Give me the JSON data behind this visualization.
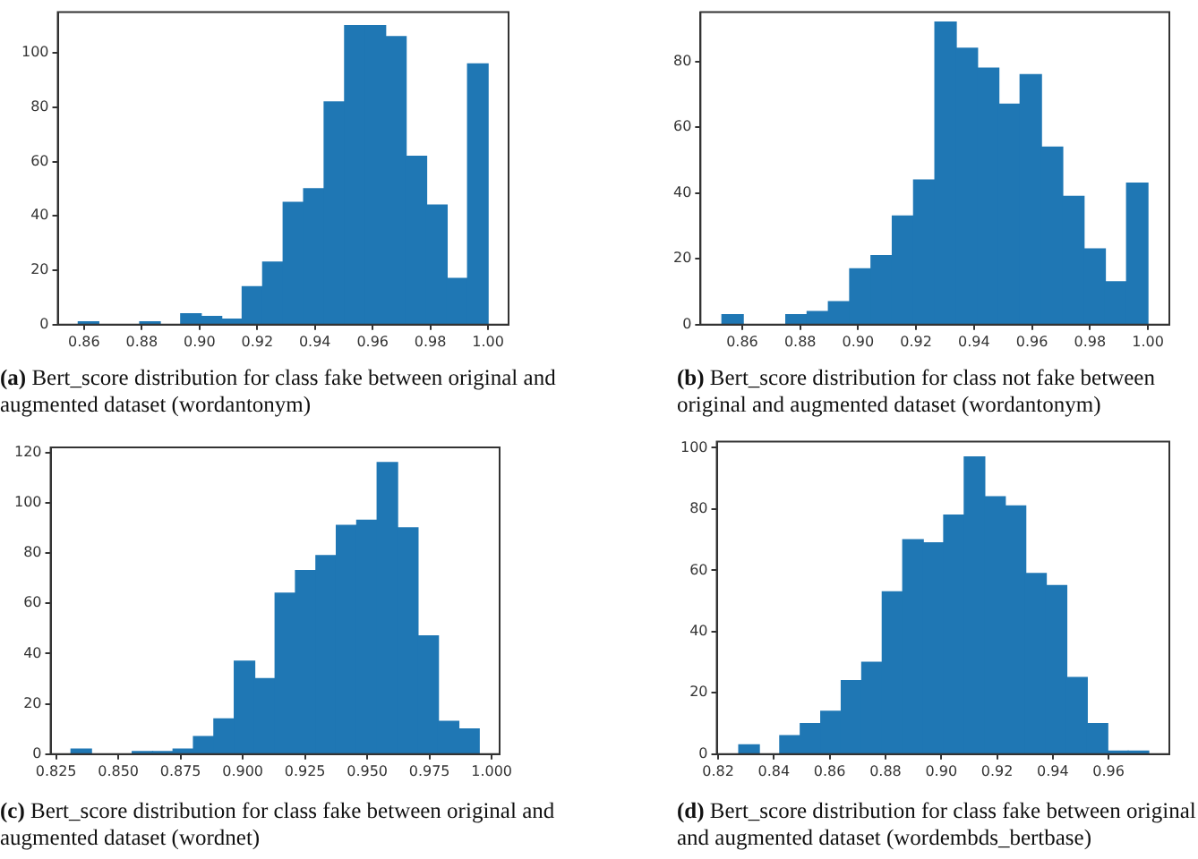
{
  "chart_data": [
    {
      "type": "histogram",
      "color": "#1f77b4",
      "bins": [
        0.858,
        0.8651,
        0.8722,
        0.8793,
        0.8864,
        0.8935,
        0.9006,
        0.9077,
        0.9148,
        0.9219,
        0.929,
        0.9361,
        0.9432,
        0.9503,
        0.9574,
        0.9645,
        0.9716,
        0.9787,
        0.9858,
        0.9929,
        1.0
      ],
      "values": [
        1,
        0,
        0,
        1,
        0,
        4,
        3,
        2,
        14,
        23,
        45,
        50,
        82,
        110,
        110,
        106,
        62,
        44,
        17,
        96
      ],
      "xlim": [
        0.8509,
        1.0071
      ],
      "ylim": [
        0,
        115
      ],
      "xticks": [
        {
          "value": 0.86,
          "label": "0.86"
        },
        {
          "value": 0.88,
          "label": "0.88"
        },
        {
          "value": 0.9,
          "label": "0.90"
        },
        {
          "value": 0.92,
          "label": "0.92"
        },
        {
          "value": 0.94,
          "label": "0.94"
        },
        {
          "value": 0.96,
          "label": "0.96"
        },
        {
          "value": 0.98,
          "label": "0.98"
        },
        {
          "value": 1.0,
          "label": "1.00"
        }
      ],
      "yticks": [
        0,
        20,
        40,
        60,
        80,
        100
      ],
      "annotations": [
        "(a) Bert_score distribution for class fake between original and augmented dataset (wordantonym)"
      ]
    },
    {
      "type": "histogram",
      "color": "#1f77b4",
      "bins": [
        0.853,
        0.86035,
        0.8677,
        0.87505,
        0.8824,
        0.88975,
        0.8971,
        0.90445,
        0.9118,
        0.91915,
        0.9265,
        0.93385,
        0.9412,
        0.94855,
        0.9559,
        0.96325,
        0.9706,
        0.97795,
        0.9853,
        0.99265,
        1.0
      ],
      "values": [
        3,
        0,
        0,
        3,
        4,
        7,
        17,
        21,
        33,
        44,
        92,
        84,
        78,
        67,
        76,
        54,
        39,
        23,
        13,
        43
      ],
      "xlim": [
        0.8456,
        1.0074
      ],
      "ylim": [
        0,
        95
      ],
      "xticks": [
        {
          "value": 0.86,
          "label": "0.86"
        },
        {
          "value": 0.88,
          "label": "0.88"
        },
        {
          "value": 0.9,
          "label": "0.90"
        },
        {
          "value": 0.92,
          "label": "0.92"
        },
        {
          "value": 0.94,
          "label": "0.94"
        },
        {
          "value": 0.96,
          "label": "0.96"
        },
        {
          "value": 0.98,
          "label": "0.98"
        },
        {
          "value": 1.0,
          "label": "1.00"
        }
      ],
      "yticks": [
        0,
        20,
        40,
        60,
        80
      ],
      "annotations": [
        "(b) Bert_score distribution for class not fake between original and augmented dataset (wordantonym)"
      ]
    },
    {
      "type": "histogram",
      "color": "#1f77b4",
      "bins": [
        0.831,
        0.8392,
        0.8474,
        0.8556,
        0.8638,
        0.872,
        0.8802,
        0.8884,
        0.8966,
        0.9048,
        0.913,
        0.9212,
        0.9294,
        0.9376,
        0.9458,
        0.954,
        0.9622,
        0.9704,
        0.9786,
        0.9868,
        0.995
      ],
      "values": [
        2,
        0,
        0,
        1,
        1,
        2,
        7,
        14,
        37,
        30,
        64,
        73,
        79,
        91,
        93,
        116,
        90,
        47,
        13,
        10
      ],
      "xlim": [
        0.8228,
        1.0032
      ],
      "ylim": [
        0,
        122
      ],
      "xticks": [
        {
          "value": 0.825,
          "label": "0.825"
        },
        {
          "value": 0.85,
          "label": "0.850"
        },
        {
          "value": 0.875,
          "label": "0.875"
        },
        {
          "value": 0.9,
          "label": "0.900"
        },
        {
          "value": 0.925,
          "label": "0.925"
        },
        {
          "value": 0.95,
          "label": "0.950"
        },
        {
          "value": 0.975,
          "label": "0.975"
        },
        {
          "value": 1.0,
          "label": "1.000"
        }
      ],
      "yticks": [
        0,
        20,
        40,
        60,
        80,
        100,
        120
      ],
      "annotations": [
        "(c) Bert_score distribution for class fake between original and augmented dataset (wordnet)"
      ]
    },
    {
      "type": "histogram",
      "color": "#1f77b4",
      "bins": [
        0.8274,
        0.83475,
        0.8421,
        0.84945,
        0.8568,
        0.86415,
        0.8715,
        0.87885,
        0.8862,
        0.89355,
        0.9009,
        0.90825,
        0.9156,
        0.92295,
        0.9303,
        0.93765,
        0.945,
        0.95235,
        0.9597,
        0.96705,
        0.9744
      ],
      "values": [
        3,
        0,
        6,
        10,
        14,
        24,
        30,
        53,
        70,
        69,
        78,
        97,
        84,
        81,
        59,
        55,
        25,
        10,
        1,
        1
      ],
      "xlim": [
        0.8195,
        0.9818
      ],
      "ylim": [
        0,
        102
      ],
      "xticks": [
        {
          "value": 0.82,
          "label": "0.82"
        },
        {
          "value": 0.84,
          "label": "0.84"
        },
        {
          "value": 0.86,
          "label": "0.86"
        },
        {
          "value": 0.88,
          "label": "0.88"
        },
        {
          "value": 0.9,
          "label": "0.90"
        },
        {
          "value": 0.92,
          "label": "0.92"
        },
        {
          "value": 0.94,
          "label": "0.94"
        },
        {
          "value": 0.96,
          "label": "0.96"
        }
      ],
      "yticks": [
        0,
        20,
        40,
        60,
        80,
        100
      ],
      "annotations": [
        "(d) Bert_score distribution for class fake between original and augmented dataset (wordembds_bertbase)"
      ]
    }
  ]
}
